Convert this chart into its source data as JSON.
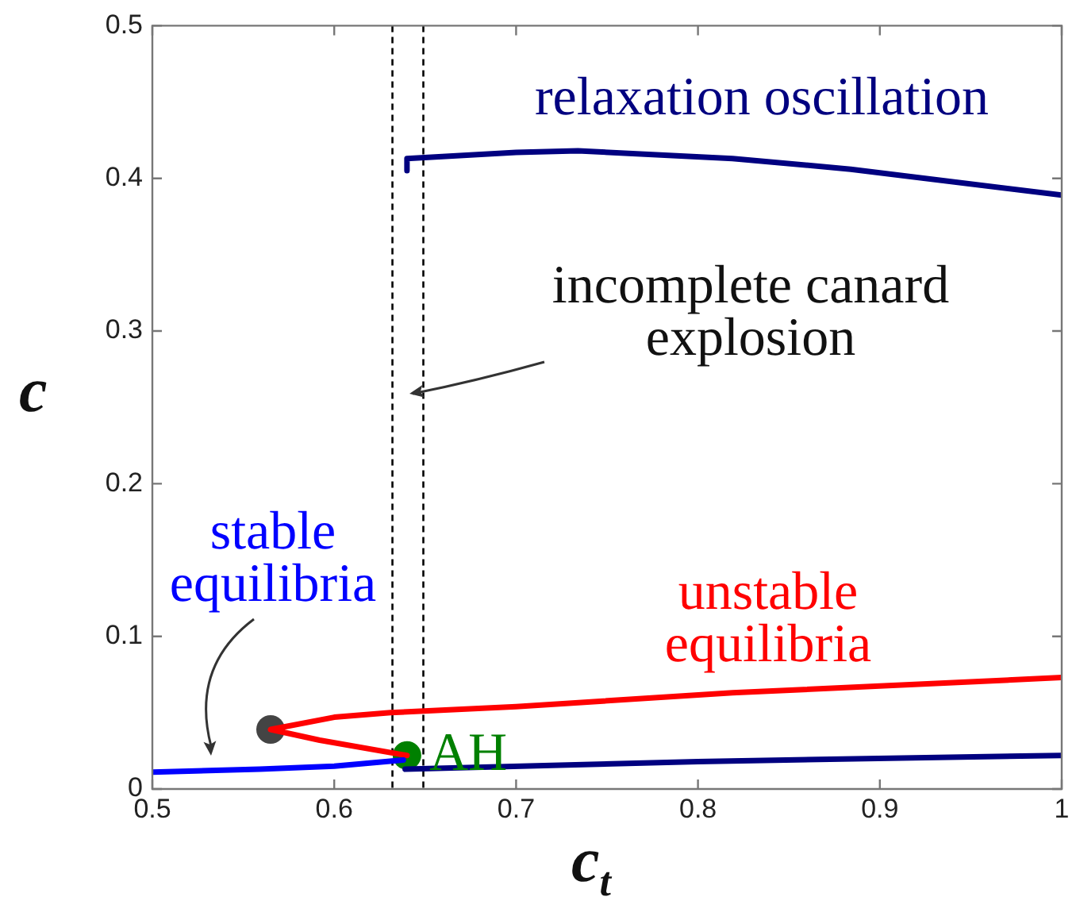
{
  "chart_data": {
    "type": "line",
    "xlabel": "c$_{t}$",
    "ylabel": "c",
    "xlim": [
      0.5,
      1
    ],
    "ylim": [
      0,
      0.5
    ],
    "xticks": [
      0.5,
      0.6,
      0.7,
      0.8,
      0.9,
      1
    ],
    "yticks": [
      0,
      0.1,
      0.2,
      0.3,
      0.4,
      0.5
    ],
    "grid": false,
    "line_style": "solid",
    "series": [
      {
        "name": "stable equilibria",
        "color": "#0000ff",
        "x": [
          0.5,
          0.559,
          0.6,
          0.638
        ],
        "values": [
          0.011,
          0.013,
          0.015,
          0.019
        ]
      },
      {
        "name": "unstable equilibria",
        "color": "#ff0000",
        "x": [
          0.64,
          0.592,
          0.565,
          0.6,
          0.631,
          0.7,
          0.819,
          1
        ],
        "values": [
          0.022,
          0.032,
          0.039,
          0.047,
          0.05,
          0.054,
          0.063,
          0.073
        ]
      },
      {
        "color": "#000080",
        "x": [
          0.639,
          0.8,
          1
        ],
        "values": [
          0.013,
          0.018,
          0.022
        ]
      },
      {
        "name": "relaxation oscillation",
        "color": "#000080",
        "x": [
          0.64,
          0.64,
          0.7,
          0.734,
          0.819,
          0.884,
          1
        ],
        "values": [
          0.405,
          0.413,
          0.417,
          0.418,
          0.413,
          0.406,
          0.389
        ]
      },
      {
        "type": "scatter",
        "color": "#444444",
        "x": [
          0.565
        ],
        "values": [
          0.039
        ]
      },
      {
        "type": "scatter",
        "name": "AH",
        "color": "#008000",
        "x": [
          0.64
        ],
        "values": [
          0.022
        ]
      }
    ],
    "ref_lines": [
      {
        "axis": "x",
        "value": 0.632,
        "color": "#000000",
        "line_style": "dashed"
      },
      {
        "axis": "x",
        "value": 0.649,
        "color": "#000000",
        "line_style": "dashed"
      }
    ],
    "annotations": [
      "incomplete canard explosion"
    ]
  }
}
